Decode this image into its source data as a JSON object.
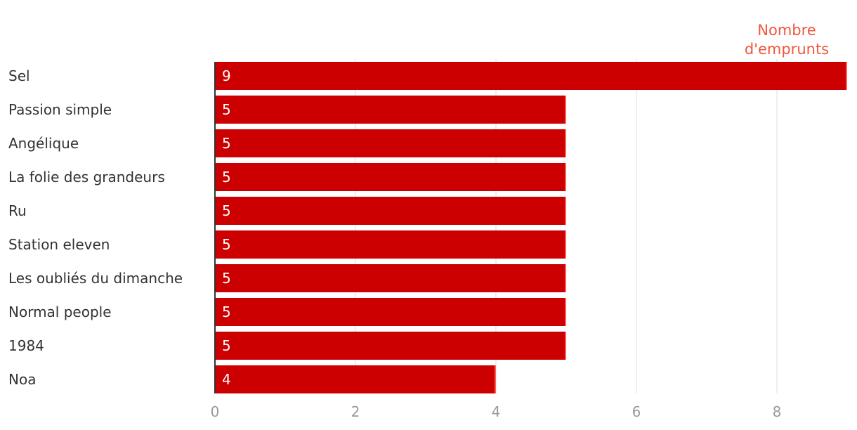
{
  "chart_data": {
    "type": "bar",
    "orientation": "horizontal",
    "categories": [
      "Sel",
      "Passion simple",
      "Angélique",
      "La folie des grandeurs",
      "Ru",
      "Station eleven",
      "Les oubliés du dimanche",
      "Normal people",
      "1984",
      "Noa"
    ],
    "series": [
      {
        "values": [
          9,
          5,
          5,
          5,
          5,
          5,
          5,
          5,
          5,
          4
        ]
      }
    ],
    "value_title_lines": [
      "Nombre",
      "d'emprunts"
    ],
    "xlim": [
      0,
      9
    ],
    "x_ticks": [
      0,
      2,
      4,
      6,
      8
    ],
    "grid": "vertical",
    "data_labels": "inside-start",
    "legend": "none"
  },
  "colors": {
    "bar": "#cc0000",
    "bar_edge": "#ff5a50",
    "value_title": "#f0563c",
    "category_label": "#333333",
    "bar_label": "#ffffff",
    "tick_label": "#999999",
    "grid": "#dddddd",
    "axis": "#333333"
  }
}
